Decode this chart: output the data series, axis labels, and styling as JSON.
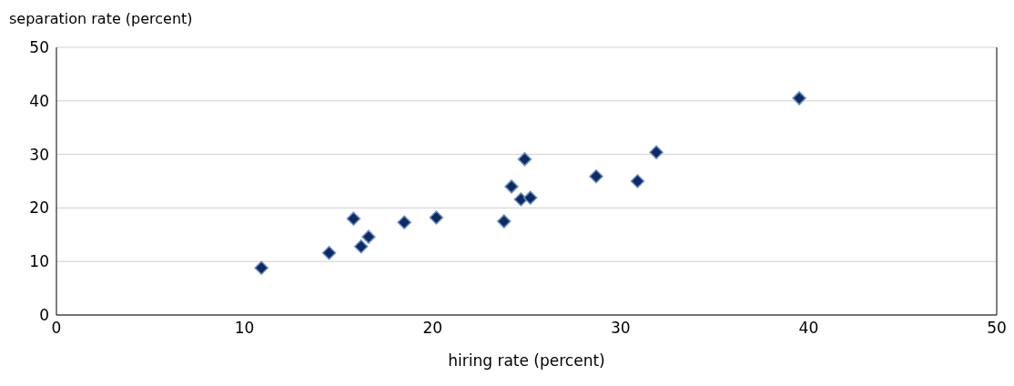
{
  "chart_data": {
    "type": "scatter",
    "xlabel": "hiring rate (percent)",
    "ylabel": "separation rate (percent)",
    "x": [
      10.9,
      14.5,
      15.8,
      16.2,
      16.6,
      18.5,
      20.2,
      23.8,
      24.2,
      24.7,
      24.9,
      25.2,
      28.7,
      30.9,
      31.9,
      39.5
    ],
    "series": [
      {
        "color": "#0f2a5e",
        "values": [
          8.8,
          11.6,
          18.0,
          12.8,
          14.6,
          17.3,
          18.2,
          17.5,
          24.0,
          21.6,
          29.1,
          21.9,
          25.9,
          25.0,
          30.4,
          40.5
        ]
      }
    ],
    "xlim": [
      0,
      50
    ],
    "xticks": [
      0,
      10,
      20,
      30,
      40,
      50
    ],
    "ylim": [
      0,
      50
    ],
    "yticks": [
      0,
      10,
      20,
      30,
      40,
      50
    ],
    "grid": "y",
    "marker": "diamond"
  }
}
